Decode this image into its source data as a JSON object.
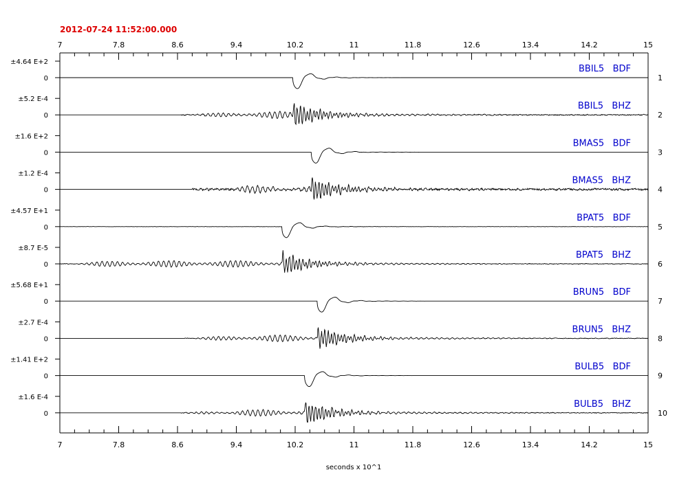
{
  "header": {
    "datetime": "2012-07-24   11:52:00.000"
  },
  "colors": {
    "datetime": "#dd0000",
    "channel_label": "#0000cc",
    "trace": "#000000",
    "axis": "#000000"
  },
  "chart_data": {
    "type": "line",
    "xlabel": "seconds x 10^1",
    "xlim": [
      7,
      15
    ],
    "x_ticks": [
      "7",
      "7.8",
      "8.6",
      "9.4",
      "10.2",
      "11",
      "11.8",
      "12.6",
      "13.4",
      "14.2",
      "15"
    ],
    "x_tick_values": [
      7,
      7.8,
      8.6,
      9.4,
      10.2,
      11,
      11.8,
      12.6,
      13.4,
      14.2,
      15
    ],
    "series": [
      {
        "name": "BBIL5   BDF",
        "number": "1",
        "scale": "±4.64 E+2",
        "zero_label": "0",
        "kind": "bdf",
        "onset": 10.17,
        "noise_start": 10.2,
        "noise": 0.0,
        "amp": 1.0
      },
      {
        "name": "BBIL5   BHZ",
        "number": "2",
        "scale": "±5.2 E-4",
        "zero_label": "0",
        "kind": "bhz",
        "onset": 10.17,
        "noise_start": 8.65,
        "noise": 0.08,
        "amp": 1.0
      },
      {
        "name": "BMAS5   BDF",
        "number": "3",
        "scale": "±1.6 E+2",
        "zero_label": "0",
        "kind": "bdf",
        "onset": 10.42,
        "noise_start": 10.45,
        "noise": 0.0,
        "amp": 1.0
      },
      {
        "name": "BMAS5   BHZ",
        "number": "4",
        "scale": "±1.2 E-4",
        "zero_label": "0",
        "kind": "bhz",
        "onset": 10.42,
        "noise_start": 8.8,
        "noise": 0.16,
        "amp": 1.0
      },
      {
        "name": "BPAT5   BDF",
        "number": "5",
        "scale": "±4.57 E+1",
        "zero_label": "0",
        "kind": "bdf",
        "onset": 10.02,
        "noise_start": 7.0,
        "noise": 0.02,
        "amp": 1.0
      },
      {
        "name": "BPAT5   BHZ",
        "number": "6",
        "scale": "±8.7 E-5",
        "zero_label": "0",
        "kind": "bhz",
        "onset": 10.02,
        "noise_start": 7.0,
        "noise": 0.05,
        "amp": 1.0
      },
      {
        "name": "BRUN5   BDF",
        "number": "7",
        "scale": "±5.68 E+1",
        "zero_label": "0",
        "kind": "bdf",
        "onset": 10.5,
        "noise_start": 10.55,
        "noise": 0.0,
        "amp": 1.0
      },
      {
        "name": "BRUN5   BHZ",
        "number": "8",
        "scale": "±2.7 E-4",
        "zero_label": "0",
        "kind": "bhz",
        "onset": 10.5,
        "noise_start": 8.7,
        "noise": 0.05,
        "amp": 1.0
      },
      {
        "name": "BULB5   BDF",
        "number": "9",
        "scale": "±1.41 E+2",
        "zero_label": "0",
        "kind": "bdf",
        "onset": 10.33,
        "noise_start": 10.36,
        "noise": 0.0,
        "amp": 1.0
      },
      {
        "name": "BULB5   BHZ",
        "number": "10",
        "scale": "±1.6 E-4",
        "zero_label": "0",
        "kind": "bhz",
        "onset": 10.33,
        "noise_start": 8.65,
        "noise": 0.06,
        "amp": 1.0
      }
    ]
  }
}
